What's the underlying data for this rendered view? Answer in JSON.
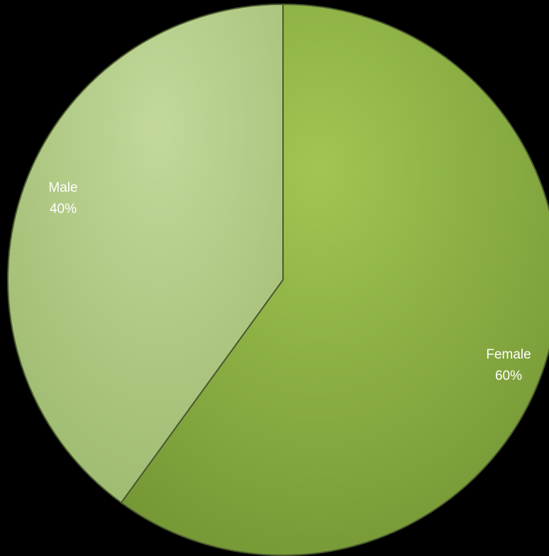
{
  "chart_data": {
    "type": "pie",
    "title": "",
    "slices": [
      {
        "label": "Female",
        "value": 60,
        "value_label": "60%",
        "color": "#8bb045"
      },
      {
        "label": "Male",
        "value": 40,
        "value_label": "40%",
        "color": "#b3cd82"
      }
    ],
    "start_angle": "12 o'clock",
    "direction": "clockwise",
    "legend": "none",
    "background": "#000000"
  }
}
